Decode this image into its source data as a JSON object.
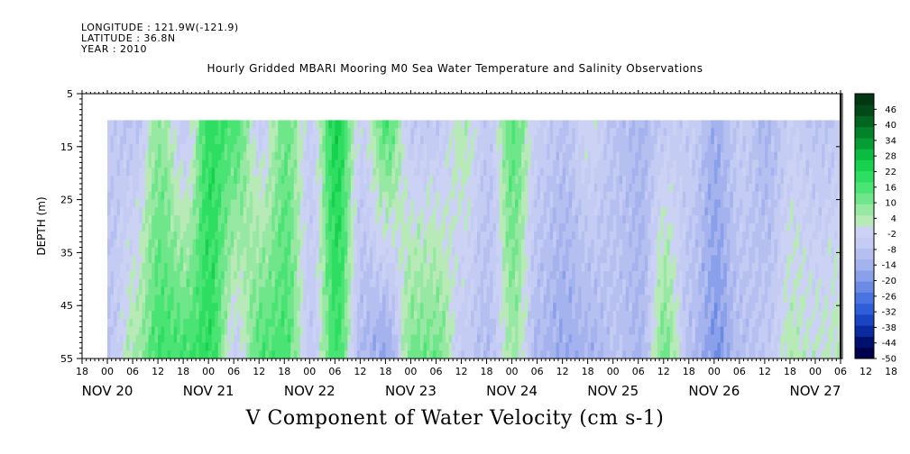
{
  "header": {
    "longitude": "LONGITUDE : 121.9W(-121.9)",
    "latitude": "LATITUDE : 36.8N",
    "year": "YEAR : 2010"
  },
  "chart_data": {
    "type": "heatmap",
    "title": "Hourly Gridded MBARI Mooring M0 Sea Water Temperature and Salinity Observations",
    "plot_title": "V Component of Water Velocity (cm s-1)",
    "ylabel": "DEPTH (m)",
    "ylim": [
      5,
      55
    ],
    "y_inverted": true,
    "y_ticks": [
      5,
      15,
      25,
      35,
      45,
      55
    ],
    "data_depth_range": [
      10,
      55
    ],
    "x_hour_ticks": [
      "18",
      "00",
      "06",
      "12",
      "18",
      "00",
      "06",
      "12",
      "18",
      "00",
      "06",
      "12",
      "18",
      "00",
      "06",
      "12",
      "18",
      "00",
      "06",
      "12",
      "18",
      "00",
      "06",
      "12",
      "18",
      "00",
      "06",
      "12",
      "18",
      "00",
      "06",
      "12",
      "18",
      "00",
      "06",
      "12",
      "18"
    ],
    "x_day_labels": [
      "NOV 20",
      "NOV 21",
      "NOV 22",
      "NOV 23",
      "NOV 24",
      "NOV 25",
      "NOV 26",
      "NOV 27"
    ],
    "x_range_hours": [
      -6,
      174
    ],
    "data_time_range_hours": [
      0,
      174
    ],
    "colorbar_labels": [
      "46",
      "40",
      "34",
      "28",
      "22",
      "16",
      "10",
      "4",
      "-2",
      "-8",
      "-14",
      "-20",
      "-26",
      "-32",
      "-38",
      "-44",
      "-50"
    ],
    "colorbar_range": [
      -50,
      52
    ],
    "colorbar_colors": [
      "#00004d",
      "#00106e",
      "#0a2a9e",
      "#1a44c4",
      "#2e5ed8",
      "#4a74e0",
      "#6a8ae4",
      "#8aa0ea",
      "#a4b2ee",
      "#b6c0f0",
      "#c4ccf4",
      "#ccd2f4",
      "#b8eab8",
      "#96e8a2",
      "#70e68a",
      "#4ae474",
      "#2ede60",
      "#18d24e",
      "#0cbc40",
      "#069e34",
      "#04822a",
      "#026622",
      "#014a18",
      "#013812"
    ],
    "v_component_field": {
      "time_hours": [
        0,
        6,
        12,
        18,
        24,
        30,
        36,
        42,
        48,
        54,
        60,
        66,
        72,
        78,
        84,
        90,
        96,
        102,
        108,
        114,
        120,
        126,
        132,
        138,
        144,
        150,
        156,
        162,
        168,
        174
      ],
      "depth_m": [
        10,
        55
      ],
      "v_at_10m": [
        -6,
        -8,
        8,
        -6,
        20,
        16,
        -4,
        12,
        -4,
        24,
        -2,
        16,
        -6,
        -6,
        4,
        -6,
        14,
        -4,
        -8,
        0,
        -8,
        -12,
        -6,
        -4,
        -14,
        -4,
        -12,
        -4,
        -8,
        -6
      ],
      "v_at_55m": [
        -8,
        6,
        18,
        18,
        20,
        -4,
        16,
        16,
        -6,
        18,
        -12,
        -18,
        12,
        12,
        -6,
        -10,
        6,
        -12,
        -16,
        -14,
        -8,
        -12,
        12,
        -10,
        -20,
        -10,
        -6,
        4,
        2,
        4
      ]
    }
  }
}
